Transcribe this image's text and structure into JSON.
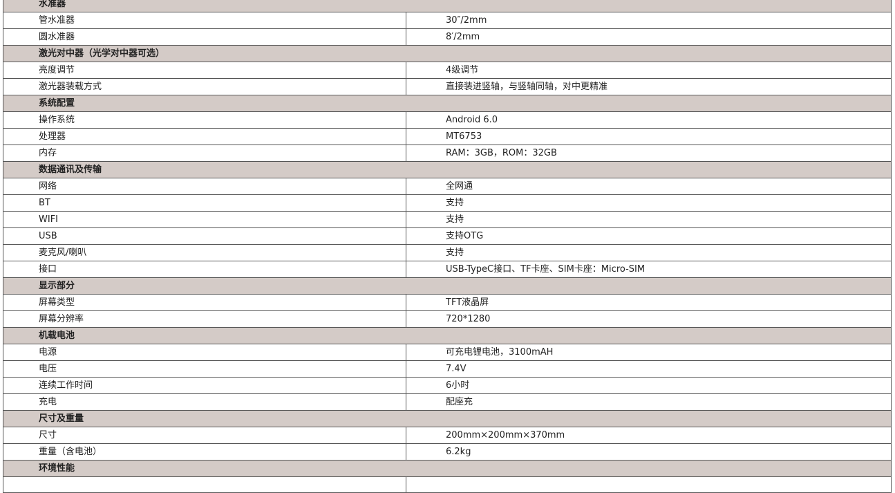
{
  "rows": [
    {
      "section": "水准器"
    },
    {
      "label": "管水准器",
      "value": "30″/2mm"
    },
    {
      "label": "圆水准器",
      "value": "8′/2mm"
    },
    {
      "section": "激光对中器（光学对中器可选）"
    },
    {
      "label": "亮度调节",
      "value": "4级调节"
    },
    {
      "label": "激光器装载方式",
      "value": "直接装进竖轴，与竖轴同轴，对中更精准"
    },
    {
      "section": "系统配置"
    },
    {
      "label": "操作系统",
      "value": "Android 6.0"
    },
    {
      "label": "处理器",
      "value": "MT6753"
    },
    {
      "label": "内存",
      "value": "RAM：3GB，ROM：32GB"
    },
    {
      "section": "数据通讯及传输"
    },
    {
      "label": "网络",
      "value": "全网通"
    },
    {
      "label": "BT",
      "value": "支持"
    },
    {
      "label": "WIFI",
      "value": "支持"
    },
    {
      "label": "USB",
      "value": "支持OTG"
    },
    {
      "label": "麦克风/喇叭",
      "value": "支持"
    },
    {
      "label": "接口",
      "value": "USB-TypeC接口、TF卡座、SIM卡座：Micro-SIM"
    },
    {
      "section": "显示部分"
    },
    {
      "label": "屏幕类型",
      "value": "TFT液晶屏"
    },
    {
      "label": "屏幕分辨率",
      "value": "720*1280"
    },
    {
      "section": "机载电池"
    },
    {
      "label": "电源",
      "value": "可充电锂电池，3100mAH"
    },
    {
      "label": "电压",
      "value": "7.4V"
    },
    {
      "label": "连续工作时间",
      "value": "6小时"
    },
    {
      "label": "充电",
      "value": "配座充"
    },
    {
      "section": "尺寸及重量"
    },
    {
      "label": "尺寸",
      "value": "200mm×200mm×370mm"
    },
    {
      "label": "重量（含电池）",
      "value": "6.2kg"
    },
    {
      "section": "环境性能"
    },
    {
      "label": "",
      "value": ""
    }
  ]
}
